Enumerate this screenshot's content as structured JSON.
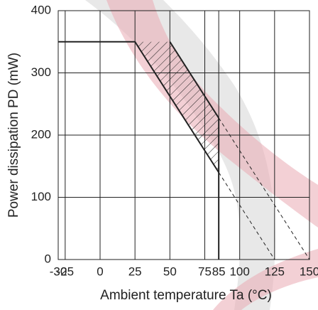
{
  "chart_data": {
    "type": "line",
    "xlabel": "Ambient temperature Ta (°C)",
    "ylabel": "Power dissipation PD (mW)",
    "xlim": [
      -30,
      150
    ],
    "ylim": [
      0,
      400
    ],
    "xticks": [
      -30,
      -25,
      0,
      25,
      50,
      75,
      85,
      100,
      125,
      150
    ],
    "yticks": [
      0,
      100,
      200,
      300,
      400
    ],
    "grid": true,
    "series": [
      {
        "color": "#222222",
        "dashed": false,
        "x": [
          -30,
          25,
          85
        ],
        "values": [
          350,
          350,
          140
        ]
      },
      {
        "color": "#222222",
        "dashed": false,
        "x": [
          50,
          85
        ],
        "values": [
          350,
          227.5
        ]
      },
      {
        "color": "#222222",
        "dashed": true,
        "x": [
          85,
          125
        ],
        "values": [
          140,
          0
        ]
      },
      {
        "color": "#222222",
        "dashed": true,
        "x": [
          85,
          150
        ],
        "values": [
          227.5,
          0
        ]
      },
      {
        "color": "#222222",
        "dashed": false,
        "x": [
          85,
          85
        ],
        "values": [
          227.5,
          0
        ]
      }
    ],
    "hatch": true
  }
}
